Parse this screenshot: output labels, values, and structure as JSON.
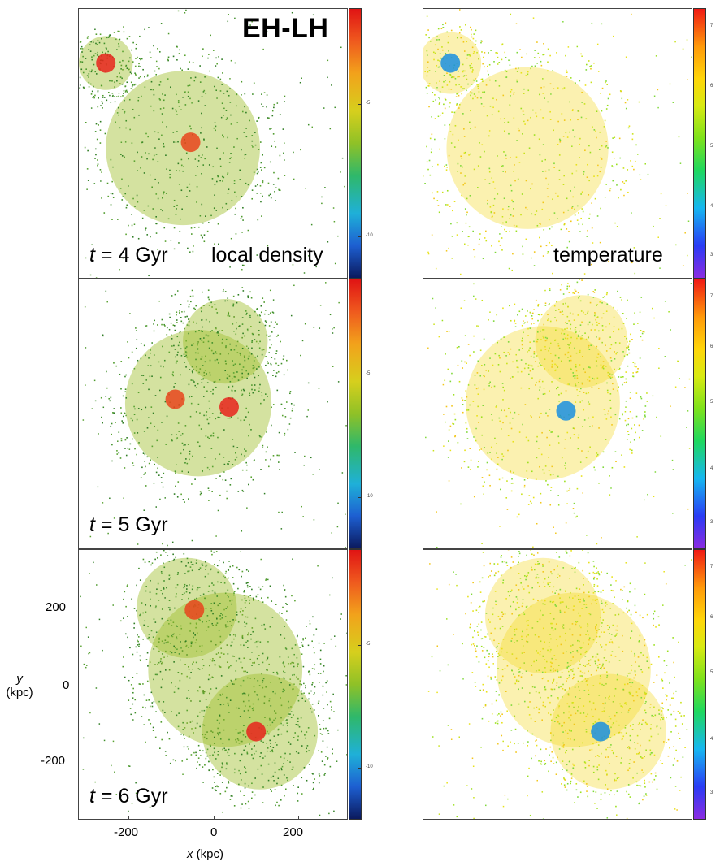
{
  "figure": {
    "title": "EH-LH",
    "columns": [
      {
        "label": "local density",
        "colormap": "density"
      },
      {
        "label": "temperature",
        "colormap": "temperature"
      }
    ],
    "rows": [
      {
        "time_label": "t = 4 Gyr",
        "time_symbol": "t",
        "time_value": "= 4 Gyr"
      },
      {
        "time_label": "t = 5 Gyr",
        "time_symbol": "t",
        "time_value": "= 5 Gyr"
      },
      {
        "time_label": "t = 6 Gyr",
        "time_symbol": "t",
        "time_value": "= 6 Gyr"
      }
    ],
    "colorbars": {
      "density_row1_ticks": [
        "-5",
        "-10"
      ],
      "density_row2_ticks": [
        "-5",
        "-10"
      ],
      "density_row3_ticks": [
        "-5",
        "-10"
      ],
      "temperature_ticks": [
        "7",
        "6",
        "5",
        "4",
        "3"
      ]
    }
  },
  "chart_data": {
    "type": "scatter",
    "title": "EH-LH",
    "xlabel_symbol": "x",
    "xlabel_unit": "(kpc)",
    "ylabel_symbol": "y",
    "ylabel_unit": "(kpc)",
    "xlim": [
      -350,
      350
    ],
    "ylim": [
      -350,
      350
    ],
    "xticks": [
      "-200",
      "0",
      "200"
    ],
    "yticks": [
      "200",
      "0",
      "-200"
    ],
    "xtick_values": [
      -200,
      0,
      200
    ],
    "ytick_values": [
      200,
      0,
      -200
    ],
    "panels": [
      {
        "row": 1,
        "quantity": "local density",
        "time_gyr": 4,
        "blobs": [
          {
            "x": -80,
            "y": -10,
            "r": 200
          },
          {
            "x": -280,
            "y": 210,
            "r": 70
          }
        ],
        "cores": [
          {
            "x": -60,
            "y": 5,
            "color": "#e8451c"
          },
          {
            "x": -280,
            "y": 210,
            "color": "#e8241c"
          }
        ]
      },
      {
        "row": 1,
        "quantity": "temperature",
        "time_gyr": 4,
        "blobs": [
          {
            "x": -80,
            "y": -10,
            "r": 210
          },
          {
            "x": -280,
            "y": 210,
            "r": 80
          }
        ],
        "cores": [
          {
            "x": -280,
            "y": 210,
            "color": "#1a8fe0"
          }
        ]
      },
      {
        "row": 2,
        "quantity": "local density",
        "time_gyr": 5,
        "blobs": [
          {
            "x": -40,
            "y": 30,
            "r": 190
          },
          {
            "x": 30,
            "y": 190,
            "r": 110
          }
        ],
        "cores": [
          {
            "x": -100,
            "y": 40,
            "color": "#e8451c"
          },
          {
            "x": 40,
            "y": 20,
            "color": "#e8241c"
          }
        ]
      },
      {
        "row": 2,
        "quantity": "temperature",
        "time_gyr": 5,
        "blobs": [
          {
            "x": -40,
            "y": 30,
            "r": 200
          },
          {
            "x": 60,
            "y": 190,
            "r": 120
          }
        ],
        "cores": [
          {
            "x": 20,
            "y": 10,
            "color": "#1a8fe0"
          }
        ]
      },
      {
        "row": 3,
        "quantity": "local density",
        "time_gyr": 6,
        "blobs": [
          {
            "x": -70,
            "y": 200,
            "r": 130
          },
          {
            "x": 120,
            "y": -120,
            "r": 150
          },
          {
            "x": 30,
            "y": 40,
            "r": 200
          }
        ],
        "cores": [
          {
            "x": -50,
            "y": 195,
            "color": "#e8451c"
          },
          {
            "x": 110,
            "y": -120,
            "color": "#e8241c"
          }
        ]
      },
      {
        "row": 3,
        "quantity": "temperature",
        "time_gyr": 6,
        "blobs": [
          {
            "x": -40,
            "y": 180,
            "r": 150
          },
          {
            "x": 130,
            "y": -120,
            "r": 150
          },
          {
            "x": 40,
            "y": 40,
            "r": 200
          }
        ],
        "cores": [
          {
            "x": 110,
            "y": -120,
            "color": "#1a8fe0"
          }
        ]
      }
    ]
  }
}
